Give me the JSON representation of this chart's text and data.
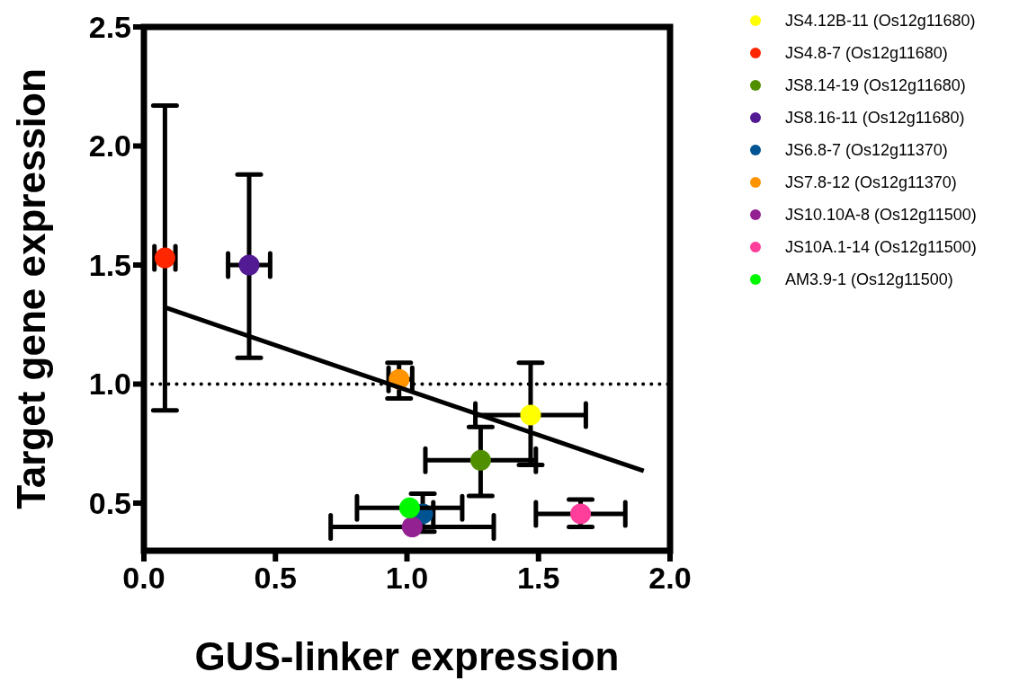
{
  "chart_data": {
    "type": "scatter",
    "xlabel": "GUS-linker expression",
    "ylabel": "Target gene expression",
    "xlim": [
      0,
      2
    ],
    "ylim": [
      0.3,
      2.5
    ],
    "xticks": [
      {
        "value": 0,
        "label": "0.0"
      },
      0.5,
      {
        "value": 1,
        "label": "1.0"
      },
      1.5,
      {
        "value": 2,
        "label": "2.0"
      }
    ],
    "yticks": [
      0.5,
      {
        "value": 1,
        "label": "1.0"
      },
      1.5,
      {
        "value": 2,
        "label": "2.0"
      },
      2.5
    ],
    "grid": false,
    "legend": "right",
    "marker": "circle",
    "ref_lines": [
      {
        "axis": "y",
        "value": 1,
        "color": "#000000",
        "line_style": "dotted"
      }
    ],
    "series": [
      {
        "name": "JS4.12B-11 (Os12g11680)",
        "color": "#ffff00",
        "x": [
          1.47
        ],
        "values": [
          0.87
        ],
        "errors": [
          [
            0.66,
            1.09
          ]
        ],
        "xerrors": [
          [
            1.26,
            1.68
          ]
        ]
      },
      {
        "name": "JS4.8-7 (Os12g11680)",
        "color": "#ff2600",
        "x": [
          0.08
        ],
        "values": [
          1.53
        ],
        "errors": [
          [
            0.89,
            2.17
          ]
        ],
        "xerrors": [
          [
            0.04,
            0.12
          ]
        ]
      },
      {
        "name": "JS8.14-19 (Os12g11680)",
        "color": "#4f8f00",
        "x": [
          1.28
        ],
        "values": [
          0.68
        ],
        "errors": [
          [
            0.53,
            0.82
          ]
        ],
        "xerrors": [
          [
            1.07,
            1.49
          ]
        ]
      },
      {
        "name": "JS8.16-11 (Os12g11680)",
        "color": "#531b93",
        "x": [
          0.4
        ],
        "values": [
          1.5
        ],
        "errors": [
          [
            1.11,
            1.88
          ]
        ],
        "xerrors": [
          [
            0.32,
            0.48
          ]
        ]
      },
      {
        "name": "JS6.8-7 (Os12g11370)",
        "color": "#005493",
        "x": [
          1.06
        ],
        "values": [
          0.455
        ],
        "errors": [
          [
            0.38,
            0.54
          ]
        ],
        "xerrors": [
          [
            1.03,
            1.1
          ]
        ]
      },
      {
        "name": "JS7.8-12 (Os12g11370)",
        "color": "#ff9300",
        "x": [
          0.97
        ],
        "values": [
          1.02
        ],
        "errors": [
          [
            0.94,
            1.09
          ]
        ],
        "xerrors": [
          [
            0.93,
            1.02
          ]
        ]
      },
      {
        "name": "JS10.10A-8 (Os12g11500)",
        "color": "#942192",
        "x": [
          1.02
        ],
        "values": [
          0.4
        ],
        "errors": [
          null
        ],
        "xerrors": [
          [
            0.71,
            1.33
          ]
        ]
      },
      {
        "name": "JS10A.1-14 (Os12g11500)",
        "color": "#ff3d9a",
        "x": [
          1.66
        ],
        "values": [
          0.455
        ],
        "errors": [
          [
            0.4,
            0.515
          ]
        ],
        "xerrors": [
          [
            1.49,
            1.83
          ]
        ]
      },
      {
        "name": "AM3.9-1 (Os12g11500)",
        "color": "#00f900",
        "x": [
          1.01
        ],
        "values": [
          0.48
        ],
        "errors": [
          null
        ],
        "xerrors": [
          [
            0.81,
            1.21
          ]
        ]
      },
      {
        "type": "line",
        "color": "#000000",
        "marker": "none",
        "x": [
          0.085,
          1.9
        ],
        "values": [
          1.32,
          0.635
        ]
      }
    ]
  }
}
